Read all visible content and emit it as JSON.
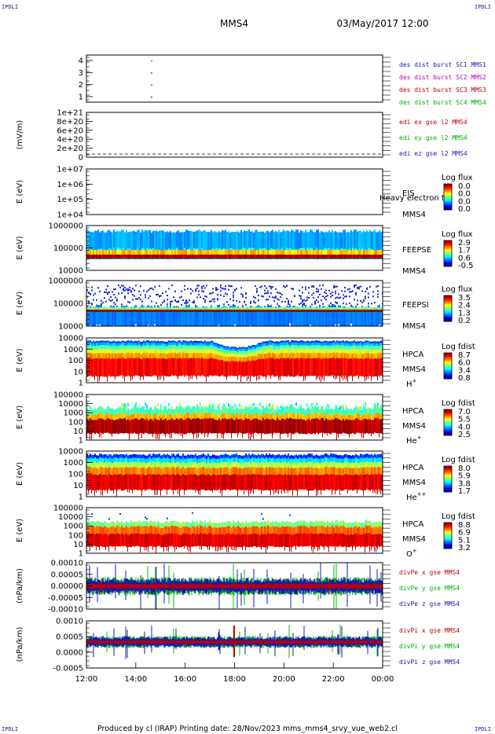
{
  "corners": {
    "tl": "IPDLI",
    "tr": "IPDLI",
    "bl": "IPDLI",
    "br": "IPDLI"
  },
  "header": {
    "spacecraft": "MMS4",
    "date": "03/May/2017 12:00"
  },
  "footer": {
    "text": "Produced by cl (IRAP)   Printing date: 28/Nov/2023   mms_mms4_srvy_vue_web2.cl"
  },
  "chart_data": {
    "type": "multi-panel time series",
    "x_axis": {
      "start": "12:00",
      "end": "00:00",
      "ticks": [
        "12:00",
        "14:00",
        "16:00",
        "18:00",
        "20:00",
        "22:00",
        "00:00"
      ]
    },
    "panels": [
      {
        "id": "burst",
        "type": "scatter",
        "ylabel": "",
        "yticks": [
          "4",
          "3",
          "2",
          "1"
        ],
        "ylim": [
          0.5,
          4.5
        ],
        "legend": [
          {
            "text": "des dist burst SC1 MMS1",
            "color": "#1a1ab0"
          },
          {
            "text": "des dist burst SC2 MMS2",
            "color": "#c000c0"
          },
          {
            "text": "des dist burst SC3 MMS3",
            "color": "#c00000"
          },
          {
            "text": "des dist burst SC4 MMS4",
            "color": "#00b000"
          }
        ]
      },
      {
        "id": "edi",
        "type": "line",
        "ylabel": "(mV/m)",
        "yticks": [
          "1e+21",
          "8e+20",
          "6e+20",
          "4e+20",
          "2e+20",
          "0"
        ],
        "ylim": [
          0,
          1e+21
        ],
        "legend": [
          {
            "text": "edi ex gse l2 MMS4",
            "color": "#c00000"
          },
          {
            "text": "edi ey gse l2 MMS4",
            "color": "#00b000"
          },
          {
            "text": "edi ez gse l2 MMS4",
            "color": "#1a1ab0"
          }
        ]
      },
      {
        "id": "eis",
        "type": "heatmap",
        "ylabel": "E (eV)",
        "yticks": [
          "1e+07",
          "1e+06",
          "1e+05",
          "1e+04"
        ],
        "ylim": [
          10000.0,
          10000000.0
        ],
        "log": true,
        "labels": [
          "EIS",
          "MMS4"
        ],
        "overlay_text": "Heavy electron to",
        "cb_title": "Log flux",
        "cb_ticks": [
          "0.0",
          "0.0",
          "0.0",
          "0.0"
        ]
      },
      {
        "id": "feepse",
        "type": "heatmap",
        "ylabel": "E (eV)",
        "yticks": [
          "1000000",
          "100000",
          "10000"
        ],
        "ylim": [
          10000.0,
          1000000.0
        ],
        "log": true,
        "labels": [
          "FEEPSE",
          "MMS4"
        ],
        "cb_title": "Log flux",
        "cb_ticks": [
          "2.9",
          "1.7",
          "0.6",
          "-0.5"
        ]
      },
      {
        "id": "feepsi",
        "type": "heatmap",
        "ylabel": "E (eV)",
        "yticks": [
          "1000000",
          "100000",
          "10000"
        ],
        "ylim": [
          10000.0,
          1000000.0
        ],
        "log": true,
        "labels": [
          "FEEPSI",
          "MMS4"
        ],
        "cb_title": "Log flux",
        "cb_ticks": [
          "3.5",
          "2.4",
          "1.3",
          "0.2"
        ]
      },
      {
        "id": "hpca_h",
        "type": "heatmap",
        "ylabel": "E (eV)",
        "yticks": [
          "10000",
          "1000",
          "100",
          "10",
          "1"
        ],
        "ylim": [
          1,
          20000
        ],
        "log": true,
        "labels": [
          "HPCA",
          "MMS4"
        ],
        "species": "H",
        "species_sup": "+",
        "cb_title": "Log fdist",
        "cb_ticks": [
          "8.7",
          "6.0",
          "3.4",
          "0.8"
        ]
      },
      {
        "id": "hpca_he",
        "type": "heatmap",
        "ylabel": "E (eV)",
        "yticks": [
          "100000",
          "10000",
          "1000",
          "100",
          "10",
          "1"
        ],
        "ylim": [
          1,
          100000
        ],
        "log": true,
        "labels": [
          "HPCA",
          "MMS4"
        ],
        "species": "He",
        "species_sup": "+",
        "cb_title": "Log fdist",
        "cb_ticks": [
          "7.0",
          "5.5",
          "4.0",
          "2.5"
        ]
      },
      {
        "id": "hpca_hepp",
        "type": "heatmap",
        "ylabel": "E (eV)",
        "yticks": [
          "10000",
          "1000",
          "100",
          "10",
          "1"
        ],
        "ylim": [
          1,
          20000
        ],
        "log": true,
        "labels": [
          "HPCA",
          "MMS4"
        ],
        "species": "He",
        "species_sup": "++",
        "cb_title": "Log fdist",
        "cb_ticks": [
          "8.0",
          "5.9",
          "3.8",
          "1.7"
        ]
      },
      {
        "id": "hpca_o",
        "type": "heatmap",
        "ylabel": "E (eV)",
        "yticks": [
          "100000",
          "10000",
          "1000",
          "100",
          "10",
          "1"
        ],
        "ylim": [
          1,
          100000
        ],
        "log": true,
        "labels": [
          "HPCA",
          "MMS4"
        ],
        "species": "O",
        "species_sup": "+",
        "cb_title": "Log fdist",
        "cb_ticks": [
          "8.8",
          "6.9",
          "5.1",
          "3.2"
        ]
      },
      {
        "id": "divpe",
        "type": "line",
        "ylabel": "(nPa/km)",
        "yticks": [
          "0.00010",
          "0.00005",
          "0.00000",
          "-0.00005",
          "-0.00010"
        ],
        "ylim": [
          -0.00014,
          0.00014
        ],
        "legend": [
          {
            "text": "divPe x gse MMS4",
            "color": "#c00000"
          },
          {
            "text": "divPe y gse MMS4",
            "color": "#00b000"
          },
          {
            "text": "divPe z gse MMS4",
            "color": "#1a1ab0"
          }
        ]
      },
      {
        "id": "divpi",
        "type": "line",
        "ylabel": "(nPa/km)",
        "yticks": [
          "0.0010",
          "0.0005",
          "0.0000",
          "-0.0005"
        ],
        "ylim": [
          -0.0008,
          0.0011
        ],
        "legend": [
          {
            "text": "divPi x gse MMS4",
            "color": "#c00000"
          },
          {
            "text": "divPi y gse MMS4",
            "color": "#00b000"
          },
          {
            "text": "divPi z gse MMS4",
            "color": "#1a1ab0"
          }
        ]
      }
    ]
  }
}
